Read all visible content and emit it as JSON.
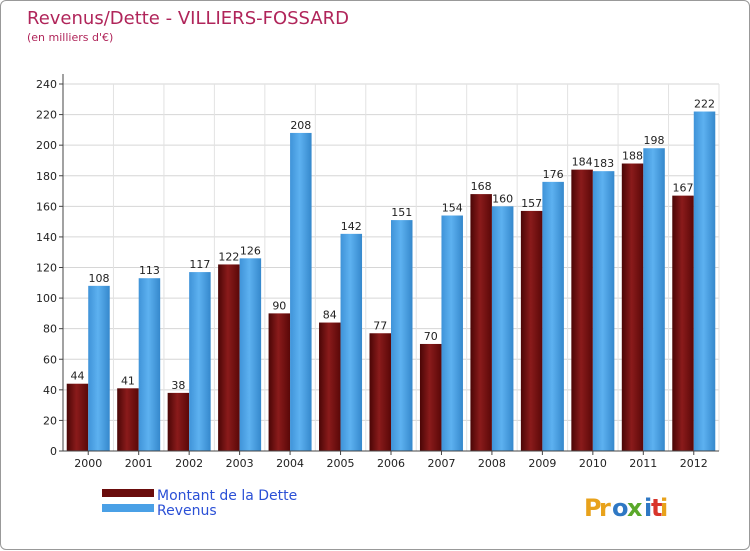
{
  "chart_data": {
    "type": "bar",
    "title": "Revenus/Dette - VILLIERS-FOSSARD",
    "subtitle": "(en milliers d'€)",
    "categories": [
      "2000",
      "2001",
      "2002",
      "2003",
      "2004",
      "2005",
      "2006",
      "2007",
      "2008",
      "2009",
      "2010",
      "2011",
      "2012"
    ],
    "series": [
      {
        "name": "Montant de la Dette",
        "color": "#7a1010",
        "values": [
          44,
          41,
          38,
          122,
          90,
          84,
          77,
          70,
          168,
          157,
          184,
          188,
          167
        ]
      },
      {
        "name": "Revenus",
        "color": "#4aa0e6",
        "values": [
          108,
          113,
          117,
          126,
          208,
          142,
          151,
          154,
          160,
          176,
          183,
          198,
          222
        ]
      }
    ],
    "ylim": [
      0,
      240
    ],
    "ytick_step": 20,
    "grid": true,
    "legend": "bottom-left"
  },
  "watermark": "Proxiti"
}
